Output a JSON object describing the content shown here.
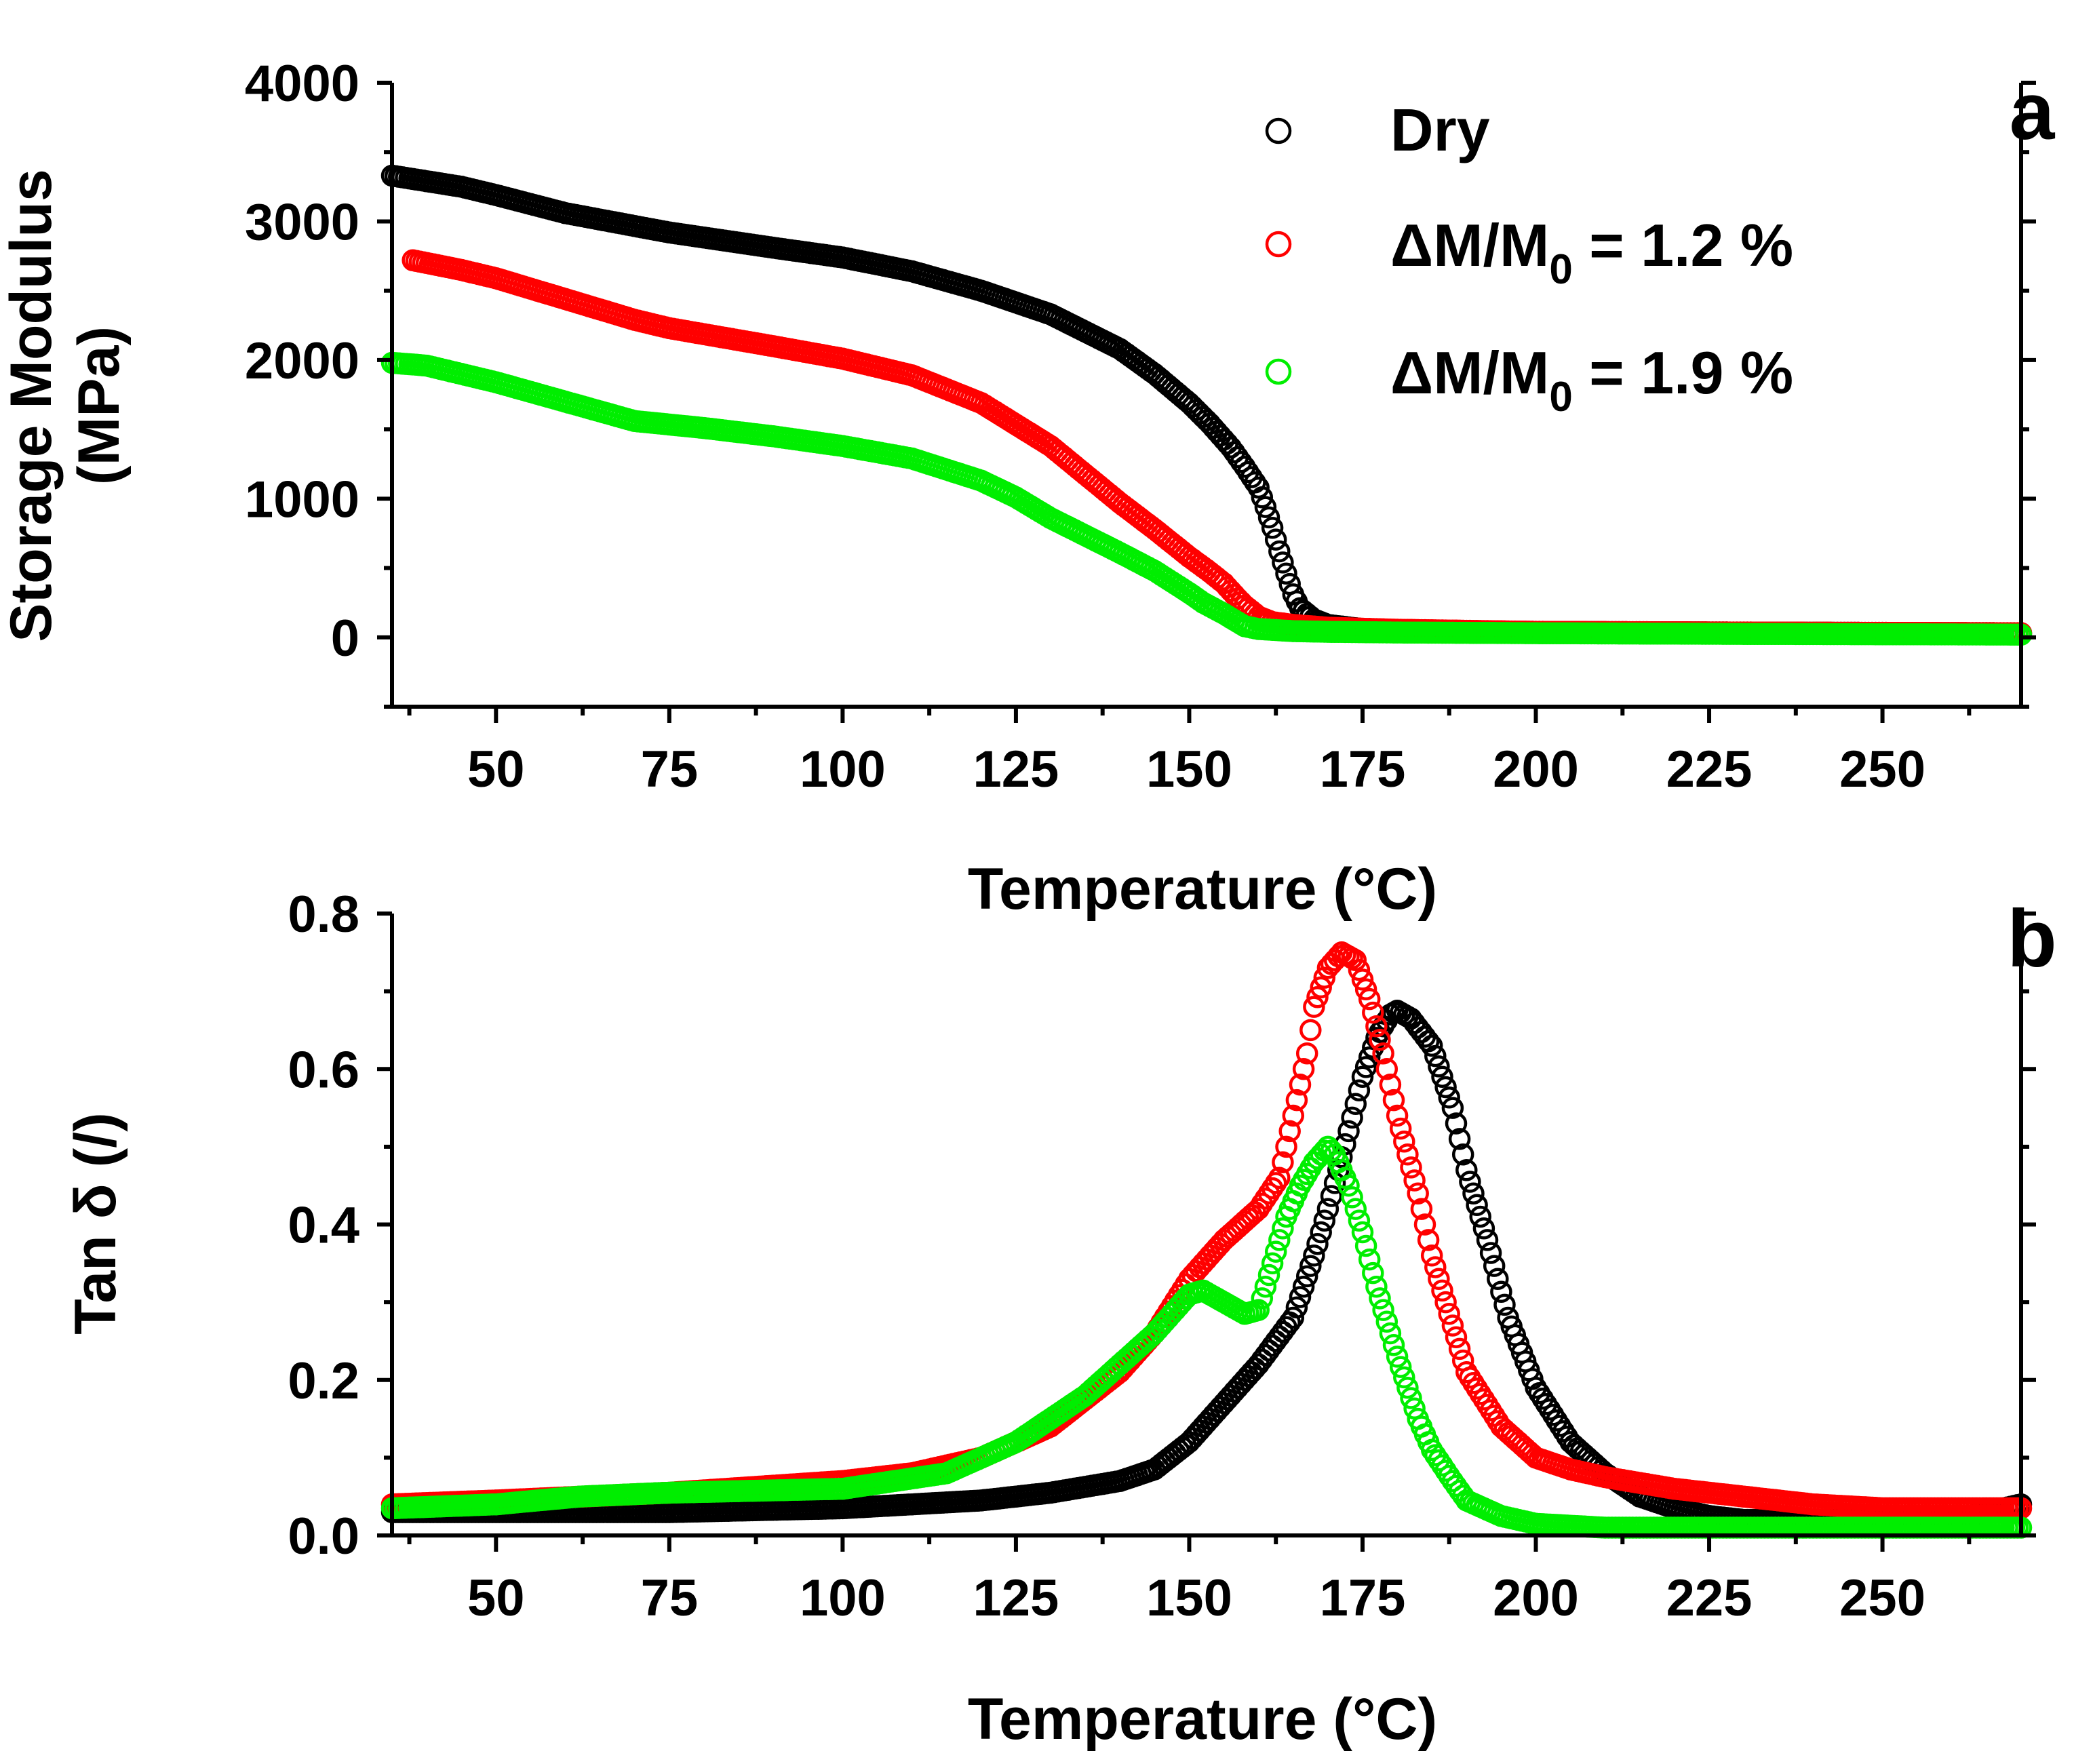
{
  "colors": {
    "dry": "#000000",
    "wet12": "#ff0000",
    "wet19": "#00ee00",
    "axis": "#000000",
    "background": "#ffffff"
  },
  "legend": {
    "dry": "Dry",
    "wet12": {
      "prefix": "ΔM/M",
      "sub": "0",
      "suffix": " = 1.2 %"
    },
    "wet19": {
      "prefix": "ΔM/M",
      "sub": "0",
      "suffix": " = 1.9 %"
    }
  },
  "chart_data": [
    {
      "panel": "a",
      "type": "scatter",
      "marker": "open-circle",
      "title": "",
      "xlabel": "Temperature (°C)",
      "ylabel_line1": "Storage Modulus",
      "ylabel_line2": "(MPa)",
      "xlim": [
        35,
        270
      ],
      "ylim": [
        -500,
        4000
      ],
      "xticks": [
        50,
        75,
        100,
        125,
        150,
        175,
        200,
        225,
        250
      ],
      "yticks": [
        0,
        1000,
        2000,
        3000,
        4000
      ],
      "ytick_labels": [
        "0",
        "1000",
        "2000",
        "3000",
        "4000"
      ],
      "legend_position": "top-right",
      "series": [
        {
          "name": "Dry",
          "color_key": "dry",
          "x": [
            35,
            40,
            45,
            50,
            60,
            75,
            90,
            100,
            110,
            120,
            130,
            140,
            145,
            150,
            153,
            156,
            158,
            160,
            161,
            162,
            163,
            164,
            165,
            166,
            168,
            170,
            175,
            180,
            200,
            230,
            270
          ],
          "y": [
            3330,
            3290,
            3250,
            3190,
            3060,
            2920,
            2810,
            2740,
            2640,
            2500,
            2330,
            2080,
            1900,
            1690,
            1540,
            1370,
            1230,
            1080,
            940,
            790,
            620,
            460,
            310,
            210,
            130,
            90,
            60,
            50,
            40,
            35,
            30
          ]
        },
        {
          "name": "ΔM/M0 = 1.2 %",
          "color_key": "wet12",
          "x": [
            38,
            40,
            45,
            50,
            60,
            70,
            75,
            90,
            100,
            110,
            120,
            130,
            140,
            145,
            150,
            153,
            155,
            157,
            158,
            160,
            162,
            165,
            170,
            180,
            200,
            230,
            270
          ],
          "y": [
            2720,
            2700,
            2650,
            2590,
            2440,
            2290,
            2230,
            2100,
            2010,
            1890,
            1690,
            1380,
            970,
            780,
            580,
            470,
            390,
            280,
            230,
            150,
            110,
            90,
            70,
            55,
            40,
            35,
            30
          ]
        },
        {
          "name": "ΔM/M0 = 1.9 %",
          "color_key": "wet19",
          "x": [
            35,
            40,
            50,
            60,
            70,
            80,
            90,
            100,
            110,
            120,
            125,
            130,
            140,
            145,
            150,
            152,
            155,
            157,
            158,
            160,
            165,
            170,
            180,
            200,
            230,
            270
          ],
          "y": [
            1980,
            1960,
            1840,
            1700,
            1560,
            1510,
            1450,
            1380,
            1290,
            1130,
            1010,
            860,
            610,
            480,
            320,
            250,
            170,
            110,
            80,
            60,
            45,
            40,
            35,
            30,
            25,
            20
          ]
        }
      ]
    },
    {
      "panel": "b",
      "type": "scatter",
      "marker": "open-circle",
      "title": "",
      "xlabel": "Temperature (°C)",
      "ylabel": "Tan δ (/)",
      "xlim": [
        35,
        270
      ],
      "ylim": [
        0,
        0.8
      ],
      "xticks": [
        50,
        75,
        100,
        125,
        150,
        175,
        200,
        225,
        250
      ],
      "yticks": [
        0.0,
        0.2,
        0.4,
        0.6,
        0.8
      ],
      "ytick_labels": [
        "0.0",
        "0.2",
        "0.4",
        "0.6",
        "0.8"
      ],
      "series": [
        {
          "name": "Dry",
          "color_key": "dry",
          "x": [
            35,
            50,
            75,
            100,
            120,
            130,
            140,
            145,
            150,
            155,
            160,
            165,
            168,
            170,
            173,
            175,
            177,
            179,
            180,
            182,
            185,
            188,
            190,
            193,
            196,
            200,
            205,
            210,
            215,
            220,
            225,
            230,
            240,
            250,
            260,
            270
          ],
          "y": [
            0.03,
            0.03,
            0.03,
            0.035,
            0.045,
            0.055,
            0.07,
            0.085,
            0.12,
            0.17,
            0.22,
            0.28,
            0.36,
            0.42,
            0.52,
            0.59,
            0.64,
            0.67,
            0.675,
            0.665,
            0.63,
            0.55,
            0.47,
            0.38,
            0.28,
            0.19,
            0.12,
            0.08,
            0.05,
            0.035,
            0.025,
            0.02,
            0.02,
            0.02,
            0.02,
            0.04
          ]
        },
        {
          "name": "ΔM/M0 = 1.2 %",
          "color_key": "wet12",
          "x": [
            35,
            50,
            75,
            100,
            110,
            120,
            130,
            140,
            145,
            150,
            155,
            160,
            163,
            165,
            167,
            168,
            170,
            172,
            174,
            176,
            178,
            180,
            183,
            185,
            188,
            190,
            195,
            200,
            205,
            210,
            220,
            230,
            240,
            250,
            260,
            270
          ],
          "y": [
            0.04,
            0.045,
            0.055,
            0.07,
            0.08,
            0.1,
            0.14,
            0.21,
            0.26,
            0.33,
            0.38,
            0.42,
            0.46,
            0.54,
            0.62,
            0.68,
            0.73,
            0.75,
            0.74,
            0.69,
            0.62,
            0.54,
            0.44,
            0.36,
            0.27,
            0.21,
            0.14,
            0.1,
            0.085,
            0.075,
            0.06,
            0.05,
            0.04,
            0.035,
            0.035,
            0.035
          ]
        },
        {
          "name": "ΔM/M0 = 1.9 %",
          "color_key": "wet19",
          "x": [
            35,
            50,
            62,
            75,
            100,
            115,
            120,
            125,
            130,
            135,
            140,
            145,
            148,
            150,
            152,
            155,
            158,
            160,
            162,
            164,
            166,
            168,
            169,
            170,
            171,
            173,
            175,
            177,
            180,
            183,
            185,
            188,
            190,
            195,
            200,
            210,
            220,
            240,
            270
          ],
          "y": [
            0.035,
            0.04,
            0.05,
            0.055,
            0.06,
            0.08,
            0.1,
            0.12,
            0.15,
            0.18,
            0.22,
            0.26,
            0.29,
            0.31,
            0.315,
            0.3,
            0.285,
            0.29,
            0.35,
            0.41,
            0.45,
            0.48,
            0.49,
            0.5,
            0.49,
            0.45,
            0.39,
            0.32,
            0.23,
            0.15,
            0.11,
            0.07,
            0.045,
            0.025,
            0.015,
            0.01,
            0.01,
            0.01,
            0.01
          ]
        }
      ]
    }
  ]
}
